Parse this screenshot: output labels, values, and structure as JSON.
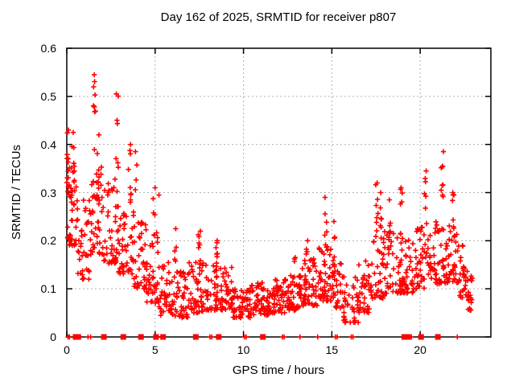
{
  "title": "Day 162 of 2025, SRMTID for receiver p807",
  "x_axis": {
    "label": "GPS time / hours",
    "min": 0,
    "max": 24,
    "ticks": [
      0,
      5,
      10,
      15,
      20
    ]
  },
  "y_axis": {
    "label": "SRMTID / TECUs",
    "min": 0,
    "max": 0.6,
    "ticks": [
      0,
      0.1,
      0.2,
      0.3,
      0.4,
      0.5,
      0.6
    ],
    "tick_labels": [
      "0",
      "0.1",
      "0.2",
      "0.3",
      "0.4",
      "0.5",
      "0.6"
    ]
  },
  "colors": {
    "points": "#ff0000",
    "grid": "#b0b0b0",
    "axis": "#000000",
    "background": "#ffffff"
  },
  "chart_data": {
    "type": "scatter",
    "marker": "plus",
    "series_name": "SRMTID",
    "title": "Day 162 of 2025, SRMTID for receiver p807",
    "xlabel": "GPS time / hours",
    "ylabel": "SRMTID / TECUs",
    "xlim": [
      0,
      24
    ],
    "ylim": [
      0,
      0.6
    ],
    "grid": "dotted, at x=5,10,15,20 and y=0.1..0.5",
    "seed": 20250611,
    "bands_note": "dense scatter envelope read from plot; format x0,x1,count,yLow,yHigh (hours, TECUs)",
    "bands": {
      "format": [
        "x0",
        "x1",
        "n",
        "lo",
        "hi"
      ],
      "rows": [
        [
          0.0,
          0.6,
          48,
          0.19,
          0.36
        ],
        [
          0.6,
          1.3,
          36,
          0.12,
          0.3
        ],
        [
          1.3,
          2.1,
          48,
          0.17,
          0.36
        ],
        [
          2.1,
          2.9,
          46,
          0.15,
          0.33
        ],
        [
          2.9,
          3.8,
          50,
          0.13,
          0.3
        ],
        [
          3.8,
          4.5,
          40,
          0.1,
          0.24
        ],
        [
          4.5,
          5.2,
          36,
          0.07,
          0.2
        ],
        [
          5.2,
          6.0,
          40,
          0.045,
          0.155
        ],
        [
          6.0,
          6.9,
          46,
          0.04,
          0.14
        ],
        [
          6.9,
          7.7,
          46,
          0.05,
          0.16
        ],
        [
          7.7,
          8.6,
          46,
          0.055,
          0.16
        ],
        [
          8.6,
          9.4,
          40,
          0.055,
          0.15
        ],
        [
          9.4,
          10.4,
          58,
          0.04,
          0.105
        ],
        [
          10.4,
          11.5,
          62,
          0.045,
          0.115
        ],
        [
          11.5,
          12.4,
          52,
          0.05,
          0.12
        ],
        [
          12.4,
          13.3,
          52,
          0.055,
          0.135
        ],
        [
          13.3,
          14.2,
          52,
          0.065,
          0.165
        ],
        [
          14.2,
          15.0,
          46,
          0.075,
          0.19
        ],
        [
          15.0,
          15.6,
          36,
          0.06,
          0.17
        ],
        [
          15.6,
          16.5,
          42,
          0.03,
          0.13
        ],
        [
          16.5,
          17.2,
          36,
          0.05,
          0.16
        ],
        [
          17.2,
          18.0,
          42,
          0.08,
          0.22
        ],
        [
          18.0,
          18.9,
          42,
          0.09,
          0.22
        ],
        [
          18.9,
          19.7,
          46,
          0.09,
          0.21
        ],
        [
          19.7,
          20.5,
          42,
          0.1,
          0.235
        ],
        [
          20.5,
          21.4,
          46,
          0.11,
          0.24
        ],
        [
          21.4,
          22.2,
          46,
          0.11,
          0.235
        ],
        [
          22.2,
          22.7,
          26,
          0.08,
          0.19
        ],
        [
          22.7,
          23.0,
          16,
          0.055,
          0.135
        ]
      ]
    },
    "spikes_note": "tall narrow columns of points; format xCenter,count,yLow,yTop",
    "spikes": {
      "format": [
        "x",
        "n",
        "lo",
        "hi"
      ],
      "rows": [
        [
          0.05,
          8,
          0.3,
          0.43
        ],
        [
          0.35,
          5,
          0.33,
          0.425
        ],
        [
          1.55,
          9,
          0.36,
          0.545
        ],
        [
          1.75,
          6,
          0.32,
          0.42
        ],
        [
          2.85,
          7,
          0.33,
          0.505
        ],
        [
          3.55,
          8,
          0.28,
          0.4
        ],
        [
          3.9,
          4,
          0.3,
          0.385
        ],
        [
          4.95,
          6,
          0.2,
          0.31
        ],
        [
          5.15,
          4,
          0.18,
          0.295
        ],
        [
          6.15,
          5,
          0.15,
          0.225
        ],
        [
          7.5,
          8,
          0.15,
          0.22
        ],
        [
          8.45,
          7,
          0.13,
          0.2
        ],
        [
          12.9,
          4,
          0.12,
          0.165
        ],
        [
          13.6,
          5,
          0.14,
          0.2
        ],
        [
          14.65,
          6,
          0.17,
          0.29
        ],
        [
          15.1,
          5,
          0.15,
          0.24
        ],
        [
          17.55,
          9,
          0.2,
          0.32
        ],
        [
          17.75,
          6,
          0.22,
          0.3
        ],
        [
          18.25,
          6,
          0.2,
          0.285
        ],
        [
          18.95,
          7,
          0.2,
          0.31
        ],
        [
          20.3,
          7,
          0.22,
          0.345
        ],
        [
          21.25,
          9,
          0.26,
          0.385
        ],
        [
          21.85,
          6,
          0.22,
          0.3
        ],
        [
          22.45,
          5,
          0.12,
          0.19
        ]
      ]
    },
    "zero_squares_hours": [
      0.5,
      0.65,
      2.1,
      3.2,
      4.2,
      5.05,
      5.45,
      7.3,
      8.6,
      11.1,
      19.1,
      19.3,
      20.05,
      21.0
    ],
    "zero_plus_hours": [
      0.07,
      0.15,
      1.2,
      1.35,
      8.1,
      8.2,
      10.05,
      10.15,
      12.2,
      12.3,
      13.2,
      14.2,
      15.2,
      15.3,
      16.1,
      16.2,
      19.5,
      22.1
    ]
  }
}
